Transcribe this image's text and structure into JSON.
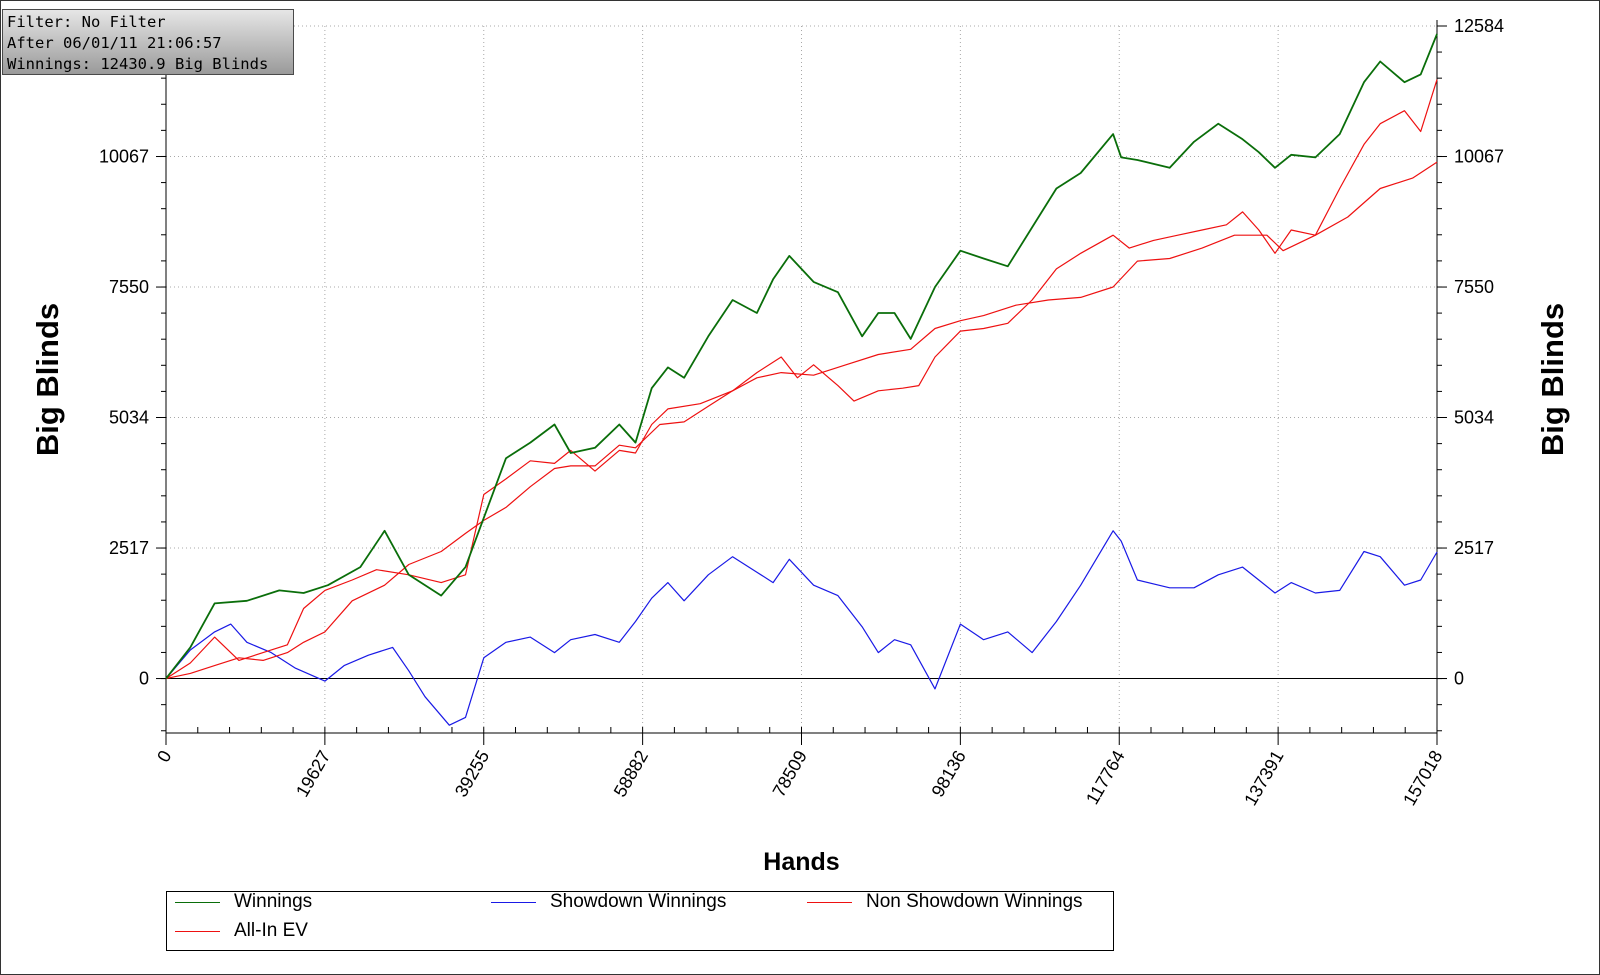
{
  "info": {
    "filter": "Filter: No Filter",
    "after": "After 06/01/11 21:06:57",
    "winnings": "Winnings: 12430.9 Big Blinds"
  },
  "chart_data": {
    "type": "line",
    "xlabel": "Hands",
    "ylabel": "Big Blinds",
    "xlim": [
      0,
      157018
    ],
    "ylim": [
      -1050,
      12584
    ],
    "x_ticks": [
      0,
      19627,
      39255,
      58882,
      78509,
      98136,
      117764,
      137391,
      157018
    ],
    "x_tick_labels": [
      "0",
      "19627",
      "39255",
      "58882",
      "78509",
      "98136",
      "117764",
      "137391",
      "157018"
    ],
    "y_ticks": [
      0,
      2517,
      5034,
      7550,
      10067,
      12584
    ],
    "y_tick_labels": [
      "0",
      "2517",
      "5034",
      "7550",
      "10067",
      "12584"
    ],
    "grid": true,
    "legend_position": "bottom",
    "series": [
      {
        "name": "Winnings",
        "color": "#0a6e0a",
        "x": [
          0,
          3000,
          6000,
          10000,
          14000,
          17000,
          20000,
          24000,
          27000,
          30000,
          34000,
          37000,
          39255,
          42000,
          45000,
          48000,
          50000,
          53000,
          56000,
          58000,
          60000,
          62000,
          64000,
          67000,
          70000,
          73000,
          75000,
          77000,
          80000,
          83000,
          86000,
          88000,
          90000,
          92000,
          95000,
          98136,
          101000,
          104000,
          107000,
          110000,
          113000,
          117000,
          118000,
          120000,
          124000,
          127000,
          130000,
          133000,
          135000,
          137000,
          139000,
          142000,
          145000,
          148000,
          150000,
          153000,
          155000,
          157018
        ],
        "y": [
          0,
          600,
          1450,
          1500,
          1700,
          1650,
          1800,
          2150,
          2850,
          2000,
          1600,
          2150,
          3100,
          4250,
          4550,
          4900,
          4350,
          4450,
          4900,
          4550,
          5600,
          6000,
          5800,
          6600,
          7300,
          7050,
          7700,
          8150,
          7650,
          7450,
          6600,
          7050,
          7050,
          6550,
          7550,
          8250,
          8100,
          7950,
          8700,
          9450,
          9750,
          10500,
          10050,
          10000,
          9850,
          10350,
          10700,
          10400,
          10150,
          9850,
          10100,
          10050,
          10500,
          11500,
          11900,
          11500,
          11650,
          12430
        ]
      },
      {
        "name": "Showdown Winnings",
        "color": "#1a1ae6",
        "x": [
          0,
          3000,
          6000,
          8000,
          10000,
          13000,
          16000,
          19627,
          22000,
          25000,
          28000,
          30000,
          32000,
          35000,
          37000,
          39255,
          42000,
          45000,
          48000,
          50000,
          53000,
          56000,
          58000,
          60000,
          62000,
          64000,
          67000,
          70000,
          73000,
          75000,
          77000,
          80000,
          83000,
          86000,
          88000,
          90000,
          92000,
          95000,
          98136,
          101000,
          104000,
          107000,
          110000,
          113000,
          117000,
          118000,
          120000,
          124000,
          127000,
          130000,
          133000,
          135000,
          137000,
          139000,
          142000,
          145000,
          148000,
          150000,
          153000,
          155000,
          157018
        ],
        "y": [
          0,
          550,
          900,
          1050,
          700,
          500,
          200,
          -50,
          250,
          450,
          600,
          150,
          -350,
          -900,
          -750,
          400,
          700,
          800,
          500,
          750,
          850,
          700,
          1100,
          1550,
          1850,
          1500,
          2000,
          2350,
          2050,
          1850,
          2300,
          1800,
          1600,
          1000,
          500,
          750,
          650,
          -200,
          1050,
          750,
          900,
          500,
          1100,
          1800,
          2850,
          2650,
          1900,
          1750,
          1750,
          2000,
          2150,
          1900,
          1650,
          1850,
          1650,
          1700,
          2450,
          2350,
          1800,
          1900,
          2440
        ]
      },
      {
        "name": "Non Showdown Winnings",
        "color": "#ee1111",
        "x": [
          0,
          3000,
          6000,
          9000,
          12000,
          15000,
          17000,
          19627,
          23000,
          27000,
          30000,
          34000,
          37000,
          39255,
          42000,
          45000,
          48000,
          50000,
          53000,
          56000,
          58000,
          61000,
          64000,
          67000,
          70000,
          73000,
          76000,
          80000,
          84000,
          88000,
          92000,
          95000,
          98136,
          101000,
          105000,
          109000,
          113000,
          117000,
          120000,
          124000,
          128000,
          132000,
          136000,
          138000,
          142000,
          146000,
          150000,
          154000,
          157018
        ],
        "y": [
          0,
          100,
          250,
          400,
          350,
          500,
          700,
          900,
          1500,
          1800,
          2200,
          2450,
          2800,
          3050,
          3300,
          3700,
          4050,
          4100,
          4100,
          4500,
          4450,
          4900,
          4950,
          5250,
          5550,
          5800,
          5900,
          5850,
          6050,
          6250,
          6350,
          6750,
          6900,
          7000,
          7200,
          7300,
          7350,
          7550,
          8050,
          8100,
          8300,
          8550,
          8550,
          8250,
          8550,
          8900,
          9450,
          9650,
          9960
        ]
      },
      {
        "name": "All-In EV",
        "color": "#ee1111",
        "x": [
          0,
          3000,
          6000,
          9000,
          12000,
          15000,
          17000,
          19627,
          23000,
          26000,
          30000,
          34000,
          37000,
          39255,
          42000,
          45000,
          48000,
          50000,
          53000,
          56000,
          58000,
          60000,
          62000,
          66000,
          70000,
          73000,
          76000,
          78000,
          80000,
          83000,
          85000,
          88000,
          91000,
          93000,
          95000,
          98136,
          101000,
          104000,
          107000,
          110000,
          113000,
          117000,
          119000,
          122000,
          125000,
          128000,
          131000,
          133000,
          135000,
          137000,
          139000,
          142000,
          145000,
          148000,
          150000,
          153000,
          155000,
          157018
        ],
        "y": [
          0,
          300,
          800,
          350,
          500,
          650,
          1350,
          1700,
          1900,
          2100,
          2000,
          1850,
          2000,
          3550,
          3850,
          4200,
          4150,
          4400,
          4000,
          4400,
          4350,
          4900,
          5200,
          5300,
          5550,
          5900,
          6200,
          5800,
          6050,
          5650,
          5350,
          5550,
          5600,
          5650,
          6200,
          6700,
          6750,
          6850,
          7300,
          7900,
          8200,
          8550,
          8300,
          8450,
          8550,
          8650,
          8750,
          9000,
          8650,
          8200,
          8650,
          8550,
          9450,
          10300,
          10700,
          10950,
          10550,
          11550
        ]
      }
    ]
  }
}
